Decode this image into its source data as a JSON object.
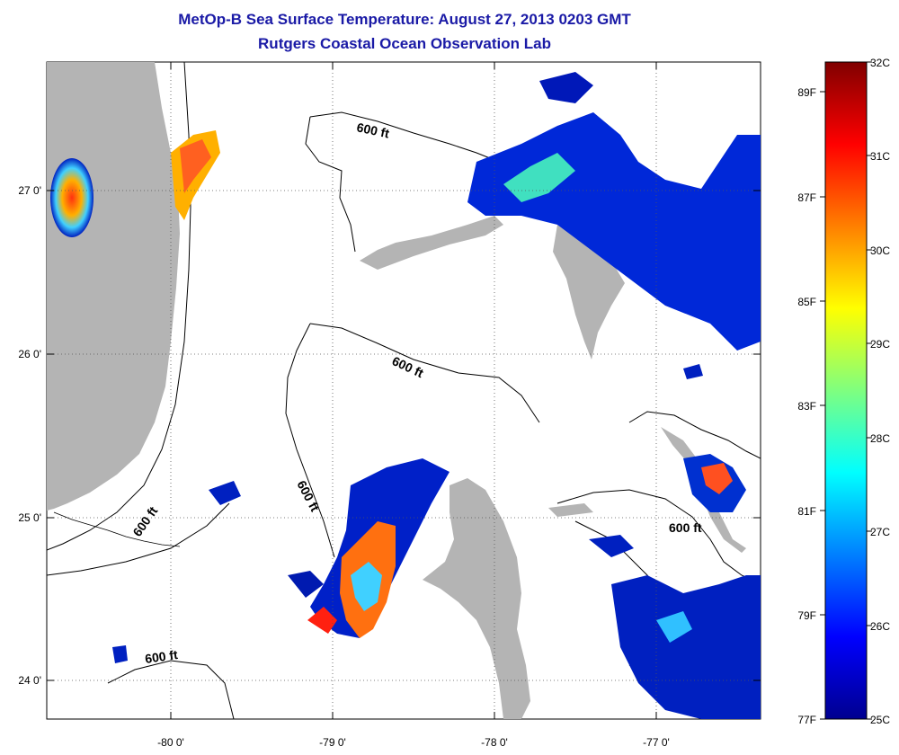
{
  "title": "MetOp-B Sea Surface Temperature:  August 27, 2013 0203 GMT",
  "subtitle": "Rutgers Coastal Ocean Observation Lab",
  "x_ticks": [
    "-80 0'",
    "-79 0'",
    "-78 0'",
    "-77 0'"
  ],
  "y_ticks": [
    "27 0'",
    "26 0'",
    "25 0'",
    "24 0'"
  ],
  "isobath_labels": [
    "600 ft",
    "600 ft",
    "600 ft",
    "600 ft",
    "600 ft",
    "600 ft"
  ],
  "colorbar": {
    "celsius": [
      "32C",
      "31C",
      "30C",
      "29C",
      "28C",
      "27C",
      "26C",
      "25C"
    ],
    "fahrenheit": [
      "89F",
      "87F",
      "85F",
      "83F",
      "81F",
      "79F",
      "77F"
    ]
  },
  "colors": {
    "land": "#b4b4b4",
    "title": "#1a1aa6",
    "sst_cold": "#00008f",
    "sst_warm": "#800000"
  }
}
